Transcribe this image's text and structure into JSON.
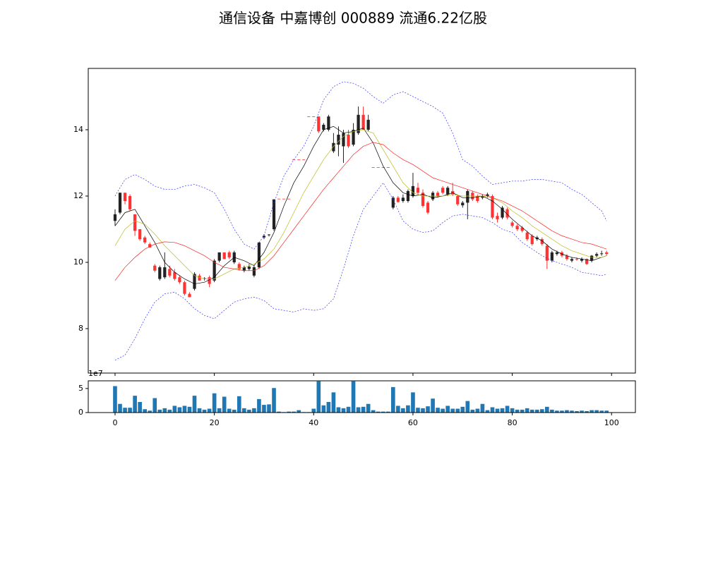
{
  "title": "通信设备 中嘉博创 000889 流通6.22亿股",
  "chart_data": [
    {
      "type": "candlestick",
      "x": [
        0,
        1,
        2,
        3,
        4,
        5,
        6,
        7,
        8,
        9,
        10,
        11,
        12,
        13,
        14,
        15,
        16,
        17,
        18,
        19,
        20,
        21,
        22,
        23,
        24,
        25,
        26,
        27,
        28,
        29,
        30,
        31,
        32,
        33,
        34,
        35,
        36,
        37,
        38,
        39,
        40,
        41,
        42,
        43,
        44,
        45,
        46,
        47,
        48,
        49,
        50,
        51,
        52,
        53,
        54,
        55,
        56,
        57,
        58,
        59,
        60,
        61,
        62,
        63,
        64,
        65,
        66,
        67,
        68,
        69,
        70,
        71,
        72,
        73,
        74,
        75,
        76,
        77,
        78,
        79,
        80,
        81,
        82,
        83,
        84,
        85,
        86,
        87,
        88,
        89,
        90,
        91,
        92,
        93,
        94,
        95,
        96,
        97,
        98,
        99
      ],
      "open": [
        11.25,
        11.5,
        12.1,
        12.0,
        11.45,
        11.0,
        10.75,
        10.55,
        9.9,
        9.5,
        9.55,
        9.8,
        9.7,
        9.55,
        9.4,
        9.05,
        9.2,
        9.6,
        9.5,
        9.55,
        9.45,
        10.05,
        10.3,
        10.3,
        10.0,
        9.95,
        9.75,
        9.8,
        9.6,
        9.85,
        10.75,
        10.82,
        11.0,
        11.92,
        11.92,
        11.92,
        13.1,
        13.1,
        13.1,
        14.4,
        14.4,
        14.4,
        14.0,
        14.0,
        13.35,
        13.55,
        13.5,
        13.85,
        13.55,
        13.9,
        14.45,
        14.0,
        12.87,
        12.87,
        12.87,
        12.87,
        11.65,
        11.95,
        11.85,
        11.85,
        12.0,
        12.25,
        12.1,
        11.8,
        11.9,
        12.1,
        12.25,
        12.05,
        12.15,
        12.0,
        11.72,
        11.8,
        12.1,
        12.0,
        11.95,
        12.0,
        12.0,
        11.4,
        11.35,
        11.6,
        11.2,
        11.1,
        11.05,
        10.9,
        10.8,
        10.7,
        10.7,
        10.5,
        10.05,
        10.25,
        10.3,
        10.2,
        10.05,
        10.1,
        10.05,
        10.1,
        10.05,
        10.2,
        10.25,
        10.3
      ],
      "high": [
        11.6,
        12.1,
        12.1,
        12.05,
        11.45,
        11.0,
        10.8,
        10.6,
        9.95,
        9.9,
        10.3,
        9.9,
        9.8,
        9.6,
        9.45,
        9.1,
        9.7,
        9.65,
        9.55,
        9.6,
        10.1,
        10.3,
        10.3,
        10.35,
        10.35,
        10.0,
        9.9,
        9.95,
        9.9,
        10.6,
        10.85,
        10.85,
        11.9,
        11.92,
        11.92,
        11.92,
        13.1,
        13.1,
        13.1,
        14.4,
        14.4,
        14.4,
        14.2,
        14.45,
        13.9,
        14.1,
        14.0,
        14.0,
        14.2,
        14.7,
        14.7,
        14.45,
        12.87,
        12.87,
        12.87,
        12.87,
        12.0,
        12.0,
        12.05,
        12.2,
        12.7,
        12.4,
        12.2,
        11.85,
        12.15,
        12.15,
        12.3,
        12.3,
        12.4,
        12.05,
        11.85,
        12.2,
        12.15,
        12.05,
        12.05,
        12.1,
        12.05,
        11.5,
        11.7,
        11.65,
        11.25,
        11.15,
        11.1,
        10.95,
        10.85,
        10.8,
        10.75,
        10.55,
        10.35,
        10.35,
        10.35,
        10.25,
        10.15,
        10.15,
        10.15,
        10.12,
        10.22,
        10.3,
        10.35,
        10.35
      ],
      "low": [
        11.1,
        11.45,
        11.75,
        11.55,
        10.8,
        10.65,
        10.55,
        10.45,
        9.7,
        9.45,
        9.5,
        9.55,
        9.45,
        9.35,
        9.0,
        8.95,
        9.15,
        9.45,
        9.45,
        9.25,
        9.4,
        10.0,
        10.1,
        10.1,
        9.95,
        9.75,
        9.7,
        9.75,
        9.55,
        9.8,
        10.7,
        10.78,
        10.95,
        11.92,
        11.92,
        11.92,
        13.1,
        13.1,
        13.1,
        14.4,
        14.4,
        13.9,
        13.95,
        13.95,
        13.3,
        13.2,
        13.0,
        13.45,
        13.5,
        13.85,
        14.0,
        13.95,
        12.87,
        12.87,
        12.87,
        12.87,
        11.6,
        11.8,
        11.8,
        11.8,
        11.95,
        12.05,
        11.65,
        11.45,
        11.85,
        11.95,
        12.05,
        12.0,
        12.0,
        11.7,
        11.65,
        11.3,
        11.85,
        11.8,
        11.9,
        11.95,
        11.3,
        11.2,
        11.3,
        11.3,
        11.05,
        10.95,
        10.9,
        10.65,
        10.5,
        10.65,
        10.5,
        9.8,
        10.0,
        10.2,
        10.15,
        10.05,
        10.0,
        10.05,
        10.0,
        9.92,
        10.0,
        10.15,
        10.2,
        10.2
      ],
      "close": [
        11.45,
        12.1,
        11.85,
        11.6,
        10.95,
        10.7,
        10.6,
        10.45,
        9.75,
        9.85,
        9.85,
        9.6,
        9.5,
        9.4,
        9.05,
        8.95,
        9.65,
        9.45,
        9.52,
        9.35,
        10.05,
        10.3,
        10.1,
        10.15,
        10.3,
        9.8,
        9.85,
        9.87,
        9.85,
        10.6,
        10.8,
        10.84,
        11.9,
        11.92,
        11.92,
        11.92,
        13.1,
        13.1,
        13.1,
        14.4,
        14.4,
        13.95,
        14.15,
        14.4,
        13.6,
        13.85,
        13.9,
        13.5,
        14.0,
        14.45,
        14.0,
        14.3,
        12.87,
        12.87,
        12.87,
        12.87,
        11.95,
        11.82,
        11.95,
        12.15,
        12.3,
        12.1,
        11.7,
        11.5,
        12.1,
        12.0,
        12.1,
        12.25,
        12.05,
        11.75,
        11.8,
        12.15,
        11.9,
        11.85,
        12.0,
        12.05,
        11.35,
        11.3,
        11.65,
        11.35,
        11.1,
        11.0,
        10.95,
        10.7,
        10.55,
        10.75,
        10.55,
        10.05,
        10.3,
        10.3,
        10.2,
        10.1,
        10.1,
        10.08,
        10.1,
        9.95,
        10.2,
        10.25,
        10.27,
        10.25
      ],
      "up_color": "#222222",
      "down_color": "#ff3333",
      "overlay_x": [
        0,
        2,
        4,
        6,
        8,
        10,
        12,
        14,
        16,
        18,
        20,
        22,
        24,
        26,
        28,
        30,
        32,
        34,
        36,
        38,
        40,
        42,
        44,
        46,
        48,
        50,
        52,
        54,
        56,
        58,
        60,
        62,
        64,
        66,
        68,
        70,
        72,
        74,
        76,
        78,
        80,
        82,
        84,
        86,
        88,
        90,
        92,
        94,
        96,
        98,
        99
      ],
      "overlays": [
        {
          "color": "#000000",
          "dashed": false,
          "values": [
            11.1,
            11.5,
            11.6,
            11.1,
            10.6,
            10.0,
            9.7,
            9.5,
            9.35,
            9.4,
            9.55,
            9.9,
            10.15,
            10.05,
            9.9,
            10.3,
            10.9,
            11.7,
            12.4,
            12.9,
            13.5,
            14.0,
            14.1,
            13.9,
            13.95,
            14.05,
            13.6,
            12.9,
            12.4,
            12.1,
            12.0,
            12.05,
            11.95,
            12.0,
            12.1,
            11.95,
            11.95,
            12.0,
            11.85,
            11.6,
            11.3,
            11.05,
            10.8,
            10.65,
            10.4,
            10.25,
            10.15,
            10.1,
            10.05,
            10.15,
            10.2
          ]
        },
        {
          "color": "#bcbd22",
          "dashed": false,
          "values": [
            10.5,
            11.0,
            11.25,
            11.15,
            10.85,
            10.5,
            10.2,
            9.9,
            9.6,
            9.5,
            9.5,
            9.65,
            9.8,
            9.85,
            9.95,
            10.1,
            10.4,
            10.9,
            11.5,
            12.1,
            12.6,
            13.1,
            13.5,
            13.8,
            13.95,
            14.0,
            13.9,
            13.4,
            12.9,
            12.4,
            12.1,
            12.0,
            12.0,
            12.0,
            12.05,
            12.0,
            12.0,
            12.0,
            11.95,
            11.8,
            11.55,
            11.35,
            11.1,
            10.9,
            10.7,
            10.5,
            10.35,
            10.25,
            10.15,
            10.15,
            10.2
          ]
        },
        {
          "color": "#ff2222",
          "dashed": false,
          "values": [
            9.45,
            9.85,
            10.15,
            10.4,
            10.55,
            10.62,
            10.6,
            10.5,
            10.35,
            10.2,
            10.0,
            9.85,
            9.8,
            9.75,
            9.75,
            9.9,
            10.2,
            10.6,
            11.0,
            11.4,
            11.8,
            12.2,
            12.55,
            12.9,
            13.25,
            13.5,
            13.62,
            13.55,
            13.3,
            13.1,
            12.95,
            12.75,
            12.55,
            12.45,
            12.35,
            12.25,
            12.15,
            12.05,
            11.95,
            11.85,
            11.7,
            11.55,
            11.35,
            11.15,
            10.95,
            10.8,
            10.7,
            10.6,
            10.55,
            10.45,
            10.4
          ]
        },
        {
          "color": "#3333ff",
          "dashed": true,
          "values": [
            12.0,
            12.5,
            12.65,
            12.5,
            12.3,
            12.2,
            12.2,
            12.3,
            12.35,
            12.25,
            12.1,
            11.6,
            11.0,
            10.55,
            10.4,
            10.8,
            11.8,
            12.6,
            13.1,
            13.5,
            14.1,
            14.9,
            15.3,
            15.45,
            15.4,
            15.25,
            15.0,
            14.8,
            15.05,
            15.15,
            15.0,
            14.85,
            14.7,
            14.5,
            13.9,
            13.1,
            12.9,
            12.6,
            12.35,
            12.4,
            12.45,
            12.45,
            12.5,
            12.5,
            12.45,
            12.4,
            12.2,
            12.05,
            11.8,
            11.55,
            11.25
          ]
        },
        {
          "color": "#3333ff",
          "dashed": true,
          "values": [
            7.05,
            7.2,
            7.7,
            8.3,
            8.8,
            9.05,
            9.1,
            8.9,
            8.6,
            8.4,
            8.3,
            8.55,
            8.8,
            8.9,
            8.95,
            8.85,
            8.6,
            8.55,
            8.5,
            8.6,
            8.55,
            8.6,
            8.9,
            9.8,
            10.8,
            11.6,
            12.0,
            12.4,
            11.9,
            11.25,
            11.0,
            10.9,
            10.95,
            11.2,
            11.4,
            11.45,
            11.4,
            11.35,
            11.2,
            11.0,
            10.9,
            10.6,
            10.4,
            10.2,
            10.05,
            9.95,
            9.85,
            9.7,
            9.65,
            9.6,
            9.65
          ]
        }
      ],
      "xlim": [
        -5.4,
        104.8
      ],
      "ylim": [
        6.66,
        15.85
      ],
      "xticks": [
        0,
        20,
        40,
        60,
        80,
        100
      ],
      "yticks": [
        8,
        10,
        12,
        14
      ]
    },
    {
      "type": "bar",
      "x": [
        0,
        1,
        2,
        3,
        4,
        5,
        6,
        7,
        8,
        9,
        10,
        11,
        12,
        13,
        14,
        15,
        16,
        17,
        18,
        19,
        20,
        21,
        22,
        23,
        24,
        25,
        26,
        27,
        28,
        29,
        30,
        31,
        32,
        33,
        34,
        35,
        36,
        37,
        38,
        39,
        40,
        41,
        42,
        43,
        44,
        45,
        46,
        47,
        48,
        49,
        50,
        51,
        52,
        53,
        54,
        55,
        56,
        57,
        58,
        59,
        60,
        61,
        62,
        63,
        64,
        65,
        66,
        67,
        68,
        69,
        70,
        71,
        72,
        73,
        74,
        75,
        76,
        77,
        78,
        79,
        80,
        81,
        82,
        83,
        84,
        85,
        86,
        87,
        88,
        89,
        90,
        91,
        92,
        93,
        94,
        95,
        96,
        97,
        98,
        99
      ],
      "values": [
        5.5,
        1.8,
        1.0,
        1.0,
        3.5,
        2.2,
        0.7,
        0.4,
        3.0,
        0.6,
        0.9,
        0.6,
        1.4,
        1.1,
        1.4,
        1.2,
        3.5,
        0.9,
        0.6,
        0.8,
        4.0,
        0.9,
        3.3,
        0.8,
        0.6,
        3.4,
        0.9,
        0.6,
        0.9,
        2.8,
        1.6,
        1.7,
        5.1,
        0.2,
        0.1,
        0.2,
        0.2,
        0.5,
        0.1,
        0.1,
        0.8,
        6.5,
        1.5,
        2.2,
        4.2,
        1.1,
        0.9,
        1.2,
        6.5,
        1.1,
        1.2,
        1.8,
        0.5,
        0.2,
        0.2,
        0.2,
        5.3,
        1.4,
        0.9,
        1.5,
        4.2,
        1.0,
        0.9,
        1.3,
        2.9,
        1.0,
        0.8,
        1.4,
        0.8,
        0.8,
        1.2,
        2.4,
        0.6,
        0.8,
        1.8,
        0.5,
        1.1,
        0.8,
        0.9,
        1.4,
        0.9,
        0.6,
        0.6,
        0.9,
        0.6,
        0.6,
        0.7,
        1.2,
        0.6,
        0.4,
        0.4,
        0.5,
        0.4,
        0.3,
        0.4,
        0.3,
        0.5,
        0.5,
        0.4,
        0.4
      ],
      "color": "#1f77b4",
      "offset_label": "1e7",
      "xlim": [
        -5.4,
        104.8
      ],
      "ylim": [
        0,
        6.6
      ],
      "xticks": [
        0,
        20,
        40,
        60,
        80,
        100
      ],
      "yticks": [
        0,
        5
      ]
    }
  ]
}
